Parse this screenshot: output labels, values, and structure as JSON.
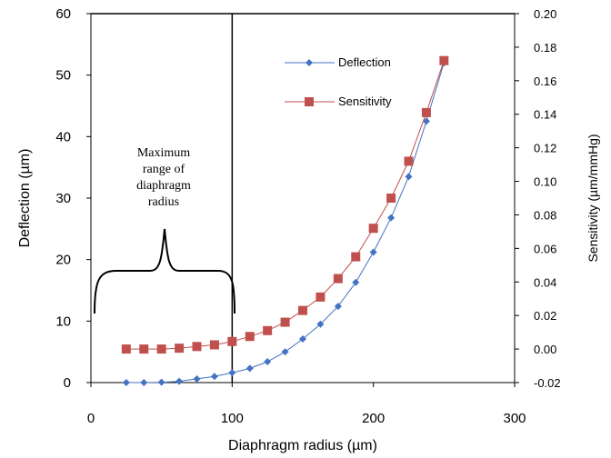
{
  "chart_data": {
    "type": "line",
    "xlabel": "Diaphragm radius  (µm)",
    "ylabel": "Deflection  (µm)",
    "y2label": "Sensitivity  (µm/mmHg)",
    "xlim": [
      0,
      300
    ],
    "ylim": [
      0,
      60
    ],
    "y2lim": [
      -0.02,
      0.2
    ],
    "x_ticks": [
      "0",
      "100",
      "200",
      "300"
    ],
    "y_ticks": [
      "0",
      "10",
      "20",
      "30",
      "40",
      "50",
      "60"
    ],
    "y2_ticks": [
      "-0.02",
      "0.00",
      "0.02",
      "0.04",
      "0.06",
      "0.08",
      "0.10",
      "0.12",
      "0.14",
      "0.16",
      "0.18",
      "0.20"
    ],
    "grid": false,
    "legend_position": "top-right",
    "vertical_line_x": 100,
    "series": [
      {
        "name": "Deflection",
        "axis": "left",
        "color": "#4472c4",
        "marker": "diamond",
        "x": [
          25,
          37.5,
          50,
          62.5,
          75,
          87.5,
          100,
          112.5,
          125,
          137.5,
          150,
          162.5,
          175,
          187.5,
          200,
          212.5,
          225,
          237.5,
          250
        ],
        "values": [
          0.0,
          0.0,
          0.05,
          0.2,
          0.6,
          1.0,
          1.6,
          2.3,
          3.4,
          5.0,
          7.1,
          9.5,
          12.4,
          16.3,
          21.2,
          26.8,
          33.5,
          42.5,
          52.0
        ]
      },
      {
        "name": "Sensitivity",
        "axis": "right",
        "color": "#c0504d",
        "marker": "square",
        "x": [
          25,
          37.5,
          50,
          62.5,
          75,
          87.5,
          100,
          112.5,
          125,
          137.5,
          150,
          162.5,
          175,
          187.5,
          200,
          212.5,
          225,
          237.5,
          250
        ],
        "values": [
          0.0,
          0.0,
          0.0,
          0.0005,
          0.0015,
          0.0025,
          0.0045,
          0.0075,
          0.011,
          0.016,
          0.023,
          0.031,
          0.042,
          0.055,
          0.072,
          0.09,
          0.112,
          0.141,
          0.172
        ]
      }
    ],
    "annotation": [
      "Maximum",
      "range of",
      "diaphragm",
      "radius"
    ]
  }
}
